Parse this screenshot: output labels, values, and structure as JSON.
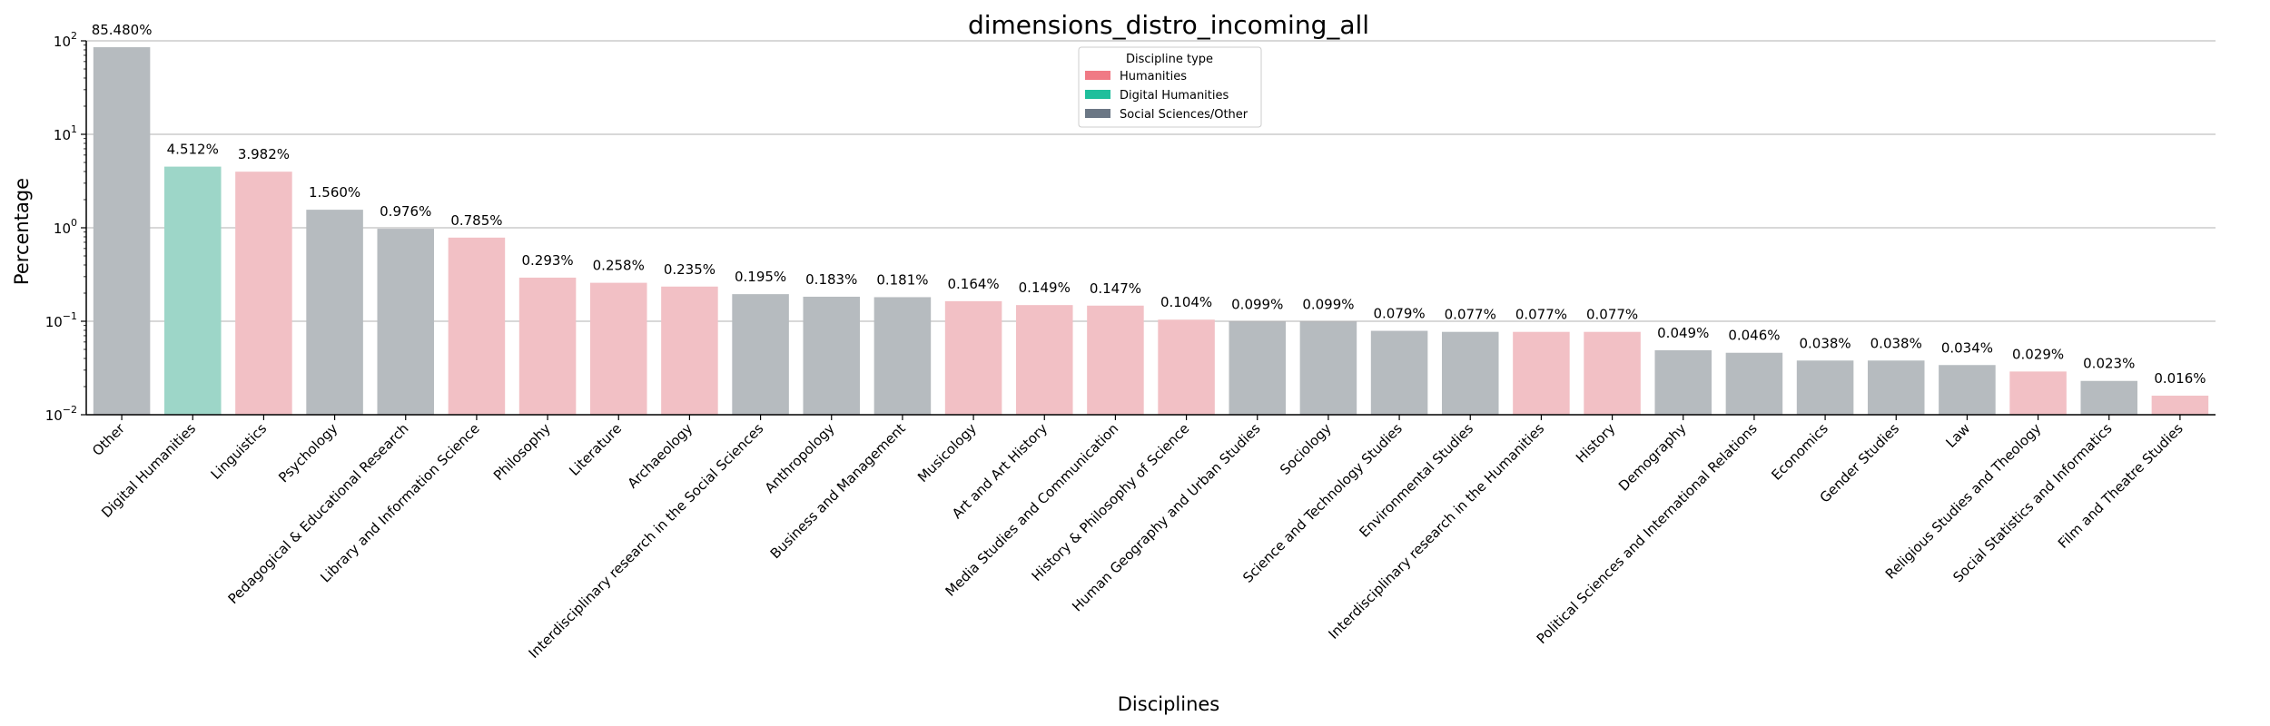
{
  "chart_data": {
    "type": "bar",
    "title": "dimensions_distro_incoming_all",
    "xlabel": "Disciplines",
    "ylabel": "Percentage",
    "yscale": "log",
    "ylim": [
      0.01,
      100
    ],
    "yticks": [
      {
        "value": 0.01,
        "base": "10",
        "exp": "−2"
      },
      {
        "value": 0.1,
        "base": "10",
        "exp": "−1"
      },
      {
        "value": 1,
        "base": "10",
        "exp": "0"
      },
      {
        "value": 10,
        "base": "10",
        "exp": "1"
      },
      {
        "value": 100,
        "base": "10",
        "exp": "2"
      }
    ],
    "grid": "horizontal",
    "legend": {
      "title": "Discipline type",
      "placement": "top-center",
      "entries": [
        {
          "key": "humanities",
          "label": "Humanities",
          "color": "#f07a85"
        },
        {
          "key": "digital",
          "label": "Digital Humanities",
          "color": "#1fbf9c"
        },
        {
          "key": "social",
          "label": "Social Sciences/Other",
          "color": "#6b7785"
        }
      ]
    },
    "bar_colors": {
      "humanities": "#f2c0c5",
      "digital": "#9dd6c8",
      "social": "#b6bbbf"
    },
    "categories": [
      "Other",
      "Digital Humanities",
      "Linguistics",
      "Psychology",
      "Pedagogical & Educational Research",
      "Library and Information Science",
      "Philosophy",
      "Literature",
      "Archaeology",
      "Interdisciplinary research in the Social Sciences",
      "Anthropology",
      "Business and Management",
      "Musicology",
      "Art and Art History",
      "Media Studies and Communication",
      "History & Philosophy of Science",
      "Human Geography and Urban Studies",
      "Sociology",
      "Science and Technology Studies",
      "Environmental Studies",
      "Interdisciplinary research in the Humanities",
      "History",
      "Demography",
      "Political Sciences and International Relations",
      "Economics",
      "Gender Studies",
      "Law",
      "Religious Studies and Theology",
      "Social Statistics and Informatics",
      "Film and Theatre Studies"
    ],
    "values": [
      85.48,
      4.512,
      3.982,
      1.56,
      0.976,
      0.785,
      0.293,
      0.258,
      0.235,
      0.195,
      0.183,
      0.181,
      0.164,
      0.149,
      0.147,
      0.104,
      0.099,
      0.099,
      0.079,
      0.077,
      0.077,
      0.077,
      0.049,
      0.046,
      0.038,
      0.038,
      0.034,
      0.029,
      0.023,
      0.016
    ],
    "labels": [
      "85.480%",
      "4.512%",
      "3.982%",
      "1.560%",
      "0.976%",
      "0.785%",
      "0.293%",
      "0.258%",
      "0.235%",
      "0.195%",
      "0.183%",
      "0.181%",
      "0.164%",
      "0.149%",
      "0.147%",
      "0.104%",
      "0.099%",
      "0.099%",
      "0.079%",
      "0.077%",
      "0.077%",
      "0.077%",
      "0.049%",
      "0.046%",
      "0.038%",
      "0.038%",
      "0.034%",
      "0.029%",
      "0.023%",
      "0.016%"
    ],
    "groups": [
      "social",
      "digital",
      "humanities",
      "social",
      "social",
      "humanities",
      "humanities",
      "humanities",
      "humanities",
      "social",
      "social",
      "social",
      "humanities",
      "humanities",
      "humanities",
      "humanities",
      "social",
      "social",
      "social",
      "social",
      "humanities",
      "humanities",
      "social",
      "social",
      "social",
      "social",
      "social",
      "humanities",
      "social",
      "humanities"
    ]
  }
}
